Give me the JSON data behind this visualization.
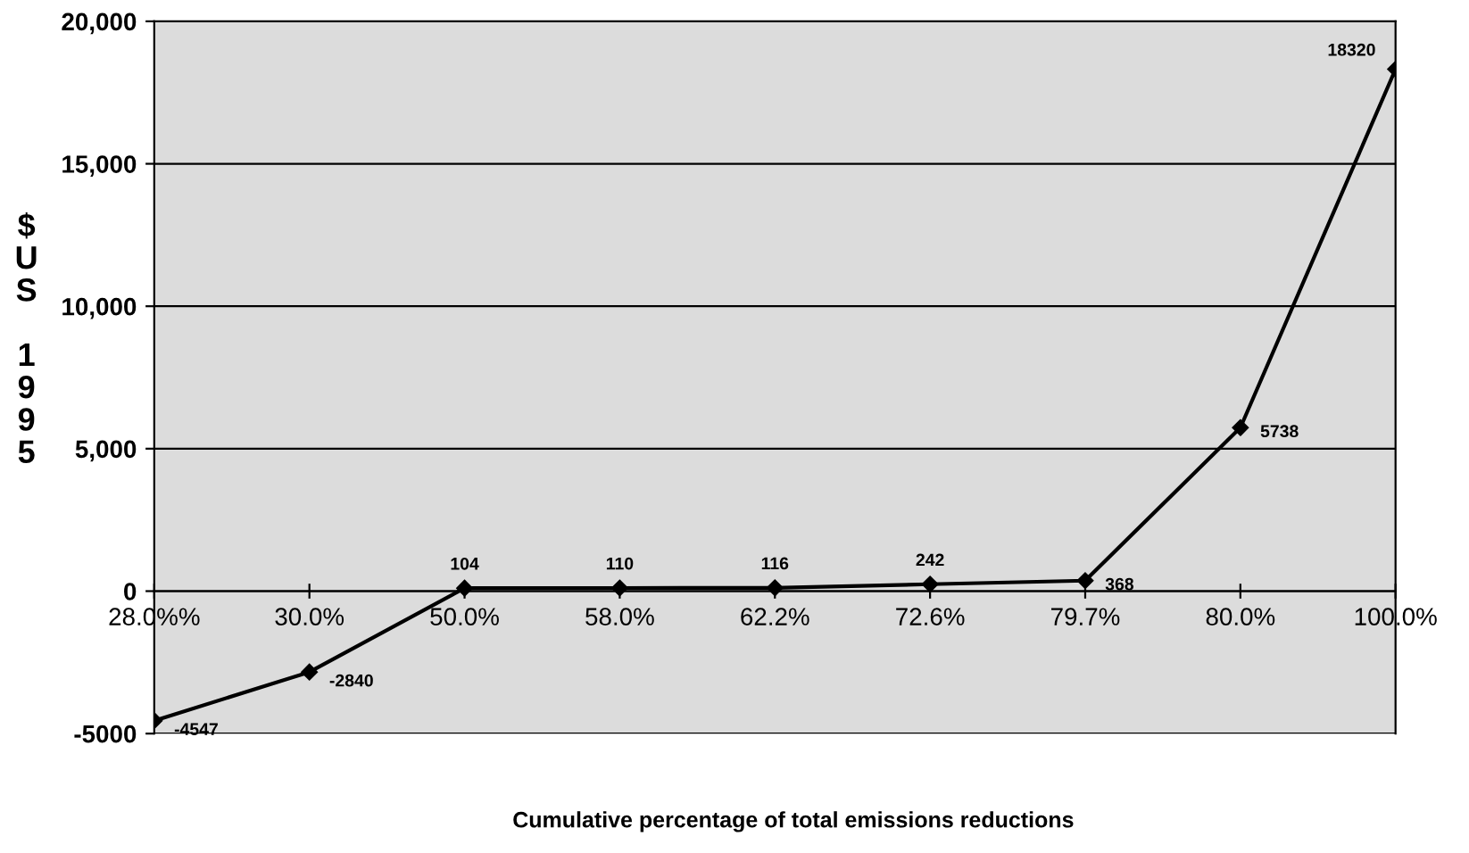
{
  "chart_data": {
    "type": "line",
    "xlabel": "Cumulative percentage of total emissions reductions",
    "ylabel": "$US 1995",
    "categories": [
      "28.0%%",
      "30.0%",
      "50.0%",
      "58.0%",
      "62.2%",
      "72.6%",
      "79.7%",
      "80.0%",
      "100.0%"
    ],
    "series": [
      {
        "color": "#000000",
        "values": [
          -4547,
          -2840,
          104,
          110,
          116,
          242,
          368,
          5738,
          18320
        ]
      }
    ],
    "data_labels": true,
    "marker": "diamond",
    "line_style": "solid",
    "grid": "y",
    "legend": false,
    "ylim": [
      -5000,
      20000
    ],
    "yticks": [
      {
        "value": -5000,
        "label": "-5000"
      },
      0,
      {
        "value": 5000,
        "label": "5,000"
      },
      {
        "value": 10000,
        "label": "10,000"
      },
      {
        "value": 15000,
        "label": "15,000"
      },
      {
        "value": 20000,
        "label": "20,000"
      }
    ]
  }
}
